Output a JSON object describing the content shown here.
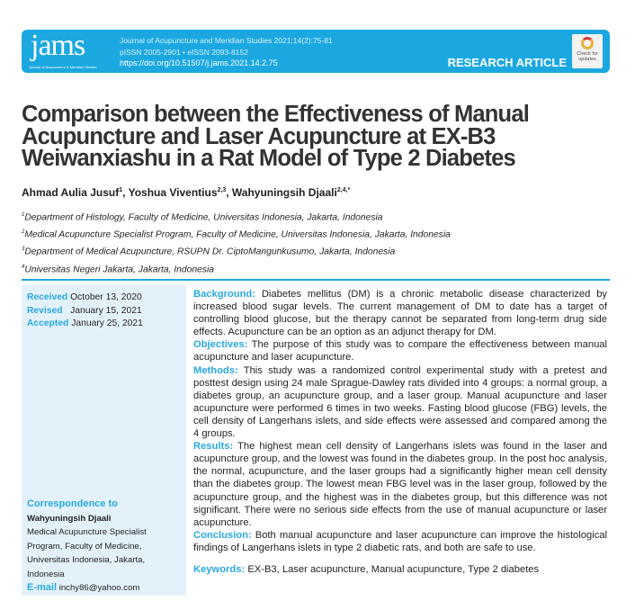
{
  "header": {
    "logo": "jams",
    "logo_sub": "Journal of Acupuncture & Meridian Studies",
    "journal": "Journal of Acupuncture and Meridian Studies 2021;14(2):75-81",
    "issn": "pISSN 2005-2901 • eISSN 2093-8152",
    "doi": "https://doi.org/10.51507/j.jams.2021.14.2.75",
    "article_type": "RESEARCH ARTICLE",
    "check_updates": "Check for updates"
  },
  "title": "Comparison between the Effectiveness of Manual Acupuncture and Laser Acupuncture at EX-B3 Weiwanxiashu in a Rat Model of Type 2 Diabetes",
  "authors": [
    {
      "name": "Ahmad Aulia Jusuf",
      "sup": "1"
    },
    {
      "name": "Yoshua Viventius",
      "sup": "2,3"
    },
    {
      "name": "Wahyuningsih Djaali",
      "sup": "2,4,*"
    }
  ],
  "affiliations": [
    {
      "sup": "1",
      "text": "Department of Histology, Faculty of Medicine, Universitas Indonesia, Jakarta, Indonesia"
    },
    {
      "sup": "2",
      "text": "Medical Acupuncture Specialist Program, Faculty of Medicine, Universitas Indonesia, Jakarta, Indonesia"
    },
    {
      "sup": "3",
      "text": "Department of Medical Acupuncture, RSUPN Dr. CiptoMangunkusumo, Jakarta, Indonesia"
    },
    {
      "sup": "4",
      "text": "Universitas Negeri Jakarta, Jakarta, Indonesia"
    }
  ],
  "dates": {
    "received_label": "Received",
    "received": "October 13, 2020",
    "revised_label": "Revised",
    "revised": "January 15, 2021",
    "accepted_label": "Accepted",
    "accepted": "January 25, 2021"
  },
  "correspondence": {
    "label": "Correspondence to",
    "name": "Wahyuningsih Djaali",
    "address": "Medical Acupuncture Specialist Program, Faculty of Medicine, Universitas Indonesia, Jakarta, Indonesia",
    "email_label": "E-mail",
    "email": "inchy86@yahoo.com"
  },
  "abstract": [
    {
      "label": "Background:",
      "text": "Diabetes mellitus (DM) is a chronic metabolic disease characterized by increased blood sugar levels. The current management of DM to date has a target of controlling blood glucose, but the therapy cannot be separated from long-term drug side effects. Acupuncture can be an option as an adjunct therapy for DM."
    },
    {
      "label": "Objectives:",
      "text": "The purpose of this study was to compare the effectiveness between manual acupuncture and laser acupuncture."
    },
    {
      "label": "Methods:",
      "text": "This study was a randomized control experimental study with a pretest and posttest design using 24 male Sprague-Dawley rats divided into 4 groups: a normal group, a diabetes group, an acupuncture group, and a laser group. Manual acupuncture and laser acupuncture were performed 6 times in two weeks. Fasting blood glucose (FBG) levels, the cell density of Langerhans islets, and side effects were assessed and compared among the 4 groups."
    },
    {
      "label": "Results:",
      "text": "The highest mean cell density of Langerhans islets was found in the laser and acupuncture group, and the lowest was found in the diabetes group. In the post hoc analysis, the normal, acupuncture, and the laser groups had a significantly higher mean cell density than the diabetes group. The lowest mean FBG level was in the laser group, followed by the acupuncture group, and the highest was in the diabetes group, but this difference was not significant. There were no serious side effects from the use of manual acupuncture or laser acupuncture."
    },
    {
      "label": "Conclusion:",
      "text": "Both manual acupuncture and laser acupuncture can improve the histological findings of Langerhans islets in type 2 diabetic rats, and both are safe to use."
    }
  ],
  "keywords": {
    "label": "Keywords:",
    "text": "EX-B3, Laser acupuncture, Manual acupuncture, Type 2 diabetes"
  },
  "colors": {
    "brand": "#1ba8e1",
    "panel": "#e3f2fa"
  }
}
